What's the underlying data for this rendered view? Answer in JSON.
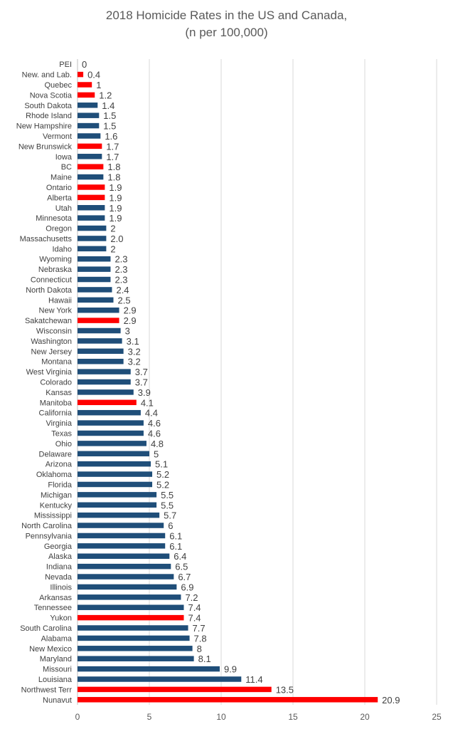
{
  "chart_data": {
    "type": "bar",
    "orientation": "horizontal",
    "title_line1": "2018 Homicide Rates in the US and Canada,",
    "title_line2": "(n per 100,000)",
    "xlabel": "",
    "ylabel": "",
    "xlim": [
      0,
      25
    ],
    "xticks": [
      "0",
      "5",
      "10",
      "15",
      "20",
      "25"
    ],
    "grid": "vertical gridlines",
    "legend": "none",
    "colors": {
      "us": "#1f4e79",
      "canada": "#ff0000",
      "grid": "#d9d9d9",
      "text": "#404040"
    },
    "categories": [
      "PEI",
      "New. and Lab.",
      "Quebec",
      "Nova Scotia",
      "South Dakota",
      "Rhode Island",
      "New Hampshire",
      "Vermont",
      "New Brunswick",
      "Iowa",
      "BC",
      "Maine",
      "Ontario",
      "Alberta",
      "Utah",
      "Minnesota",
      "Oregon",
      "Massachusetts",
      "Idaho",
      "Wyoming",
      "Nebraska",
      "Connecticut",
      "North Dakota",
      "Hawaii",
      "New York",
      "Sakatchewan",
      "Wisconsin",
      "Washington",
      "New Jersey",
      "Montana",
      "West Virginia",
      "Colorado",
      "Kansas",
      "Manitoba",
      "California",
      "Virginia",
      "Texas",
      "Ohio",
      "Delaware",
      "Arizona",
      "Oklahoma",
      "Florida",
      "Michigan",
      "Kentucky",
      "Mississippi",
      "North Carolina",
      "Pennsylvania",
      "Georgia",
      "Alaska",
      "Indiana",
      "Nevada",
      "Illinois",
      "Arkansas",
      "Tennessee",
      "Yukon",
      "South Carolina",
      "Alabama",
      "New Mexico",
      "Maryland",
      "Missouri",
      "Louisiana",
      "Northwest Terr",
      "Nunavut"
    ],
    "values": [
      0,
      0.4,
      1,
      1.2,
      1.4,
      1.5,
      1.5,
      1.6,
      1.7,
      1.7,
      1.8,
      1.8,
      1.9,
      1.9,
      1.9,
      1.9,
      2,
      2.0,
      2,
      2.3,
      2.3,
      2.3,
      2.4,
      2.5,
      2.9,
      2.9,
      3,
      3.1,
      3.2,
      3.2,
      3.7,
      3.7,
      3.9,
      4.1,
      4.4,
      4.6,
      4.6,
      4.8,
      5,
      5.1,
      5.2,
      5.2,
      5.5,
      5.5,
      5.7,
      6,
      6.1,
      6.1,
      6.4,
      6.5,
      6.7,
      6.9,
      7.2,
      7.4,
      7.4,
      7.7,
      7.8,
      8,
      8.1,
      9.9,
      11.4,
      13.5,
      20.9
    ],
    "data_labels": [
      "0",
      "0.4",
      "1",
      "1.2",
      "1.4",
      "1.5",
      "1.5",
      "1.6",
      "1.7",
      "1.7",
      "1.8",
      "1.8",
      "1.9",
      "1.9",
      "1.9",
      "1.9",
      "2",
      "2.0",
      "2",
      "2.3",
      "2.3",
      "2.3",
      "2.4",
      "2.5",
      "2.9",
      "2.9",
      "3",
      "3.1",
      "3.2",
      "3.2",
      "3.7",
      "3.7",
      "3.9",
      "4.1",
      "4.4",
      "4.6",
      "4.6",
      "4.8",
      "5",
      "5.1",
      "5.2",
      "5.2",
      "5.5",
      "5.5",
      "5.7",
      "6",
      "6.1",
      "6.1",
      "6.4",
      "6.5",
      "6.7",
      "6.9",
      "7.2",
      "7.4",
      "7.4",
      "7.7",
      "7.8",
      "8",
      "8.1",
      "9.9",
      "11.4",
      "13.5",
      "20.9"
    ],
    "country": [
      "CA",
      "CA",
      "CA",
      "CA",
      "US",
      "US",
      "US",
      "US",
      "CA",
      "US",
      "CA",
      "US",
      "CA",
      "CA",
      "US",
      "US",
      "US",
      "US",
      "US",
      "US",
      "US",
      "US",
      "US",
      "US",
      "US",
      "CA",
      "US",
      "US",
      "US",
      "US",
      "US",
      "US",
      "US",
      "CA",
      "US",
      "US",
      "US",
      "US",
      "US",
      "US",
      "US",
      "US",
      "US",
      "US",
      "US",
      "US",
      "US",
      "US",
      "US",
      "US",
      "US",
      "US",
      "US",
      "US",
      "CA",
      "US",
      "US",
      "US",
      "US",
      "US",
      "US",
      "CA",
      "CA"
    ]
  }
}
